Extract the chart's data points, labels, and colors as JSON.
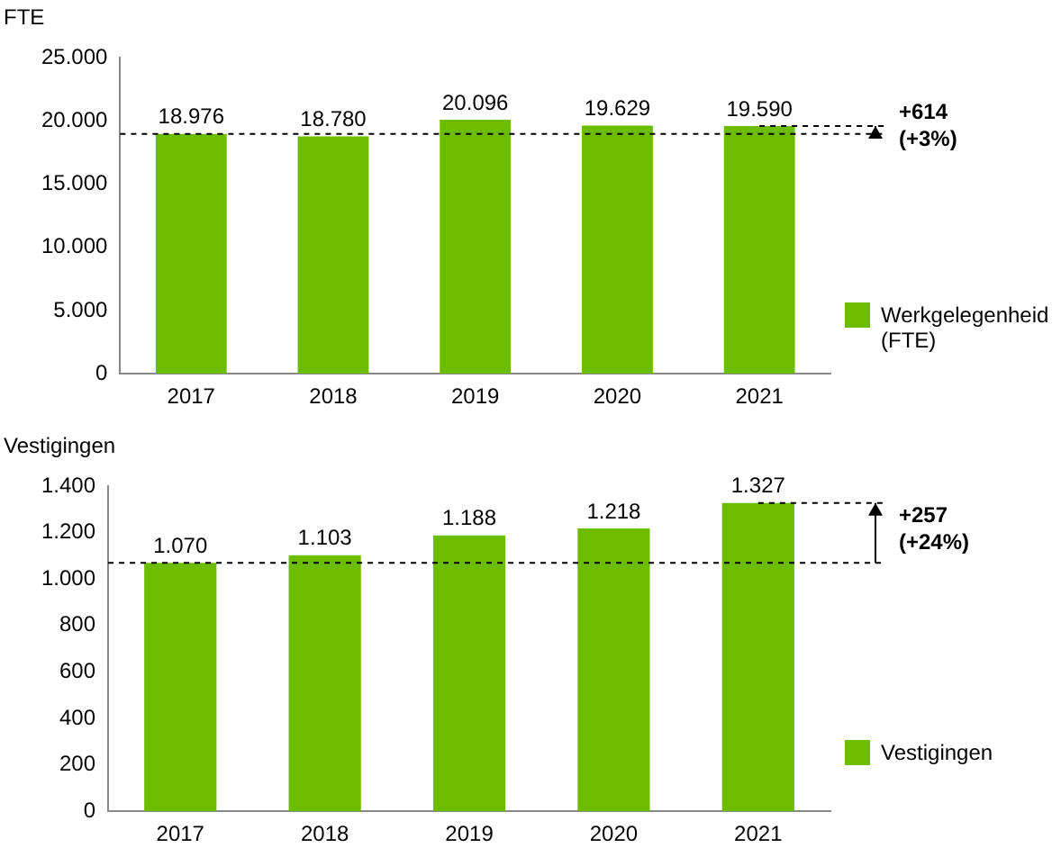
{
  "chart_data": [
    {
      "type": "bar",
      "ylabel": "FTE",
      "categories": [
        "2017",
        "2018",
        "2019",
        "2020",
        "2021"
      ],
      "series": [
        {
          "name": "Werkgelegenheid (FTE)",
          "color": "#6cbd00",
          "values": [
            18976,
            18780,
            20096,
            19629,
            19590
          ],
          "value_labels": [
            "18.976",
            "18.780",
            "20.096",
            "19.629",
            "19.590"
          ]
        }
      ],
      "ylim": [
        0,
        25000
      ],
      "yticks": [
        {
          "value": 0,
          "label": "0"
        },
        {
          "value": 5000,
          "label": "5.000"
        },
        {
          "value": 10000,
          "label": "10.000"
        },
        {
          "value": 15000,
          "label": "15.000"
        },
        {
          "value": 20000,
          "label": "20.000"
        },
        {
          "value": 25000,
          "label": "25.000"
        }
      ],
      "ref_lines": [
        {
          "axis": "y",
          "value": 18976,
          "line_style": "dashed",
          "color": "#000000"
        }
      ],
      "annotations": [
        {
          "text": "+614 (+3%)",
          "x": "2021",
          "y": 19590
        }
      ],
      "grid": false,
      "legend": "bottom right"
    },
    {
      "type": "bar",
      "ylabel": "Vestigingen",
      "categories": [
        "2017",
        "2018",
        "2019",
        "2020",
        "2021"
      ],
      "series": [
        {
          "name": "Vestigingen",
          "color": "#6cbd00",
          "values": [
            1070,
            1103,
            1188,
            1218,
            1327
          ],
          "value_labels": [
            "1.070",
            "1.103",
            "1.188",
            "1.218",
            "1.327"
          ]
        }
      ],
      "ylim": [
        0,
        1400
      ],
      "yticks": [
        {
          "value": 0,
          "label": "0"
        },
        {
          "value": 200,
          "label": "200"
        },
        {
          "value": 400,
          "label": "400"
        },
        {
          "value": 600,
          "label": "600"
        },
        {
          "value": 800,
          "label": "800"
        },
        {
          "value": 1000,
          "label": "1.000"
        },
        {
          "value": 1200,
          "label": "1.200"
        },
        {
          "value": 1400,
          "label": "1.400"
        }
      ],
      "ref_lines": [
        {
          "axis": "y",
          "value": 1070,
          "line_style": "dashed",
          "color": "#000000"
        }
      ],
      "annotations": [
        {
          "text": "+257 (+24%)",
          "x": "2021",
          "y": 1327
        }
      ],
      "grid": false,
      "legend": "bottom right"
    }
  ]
}
